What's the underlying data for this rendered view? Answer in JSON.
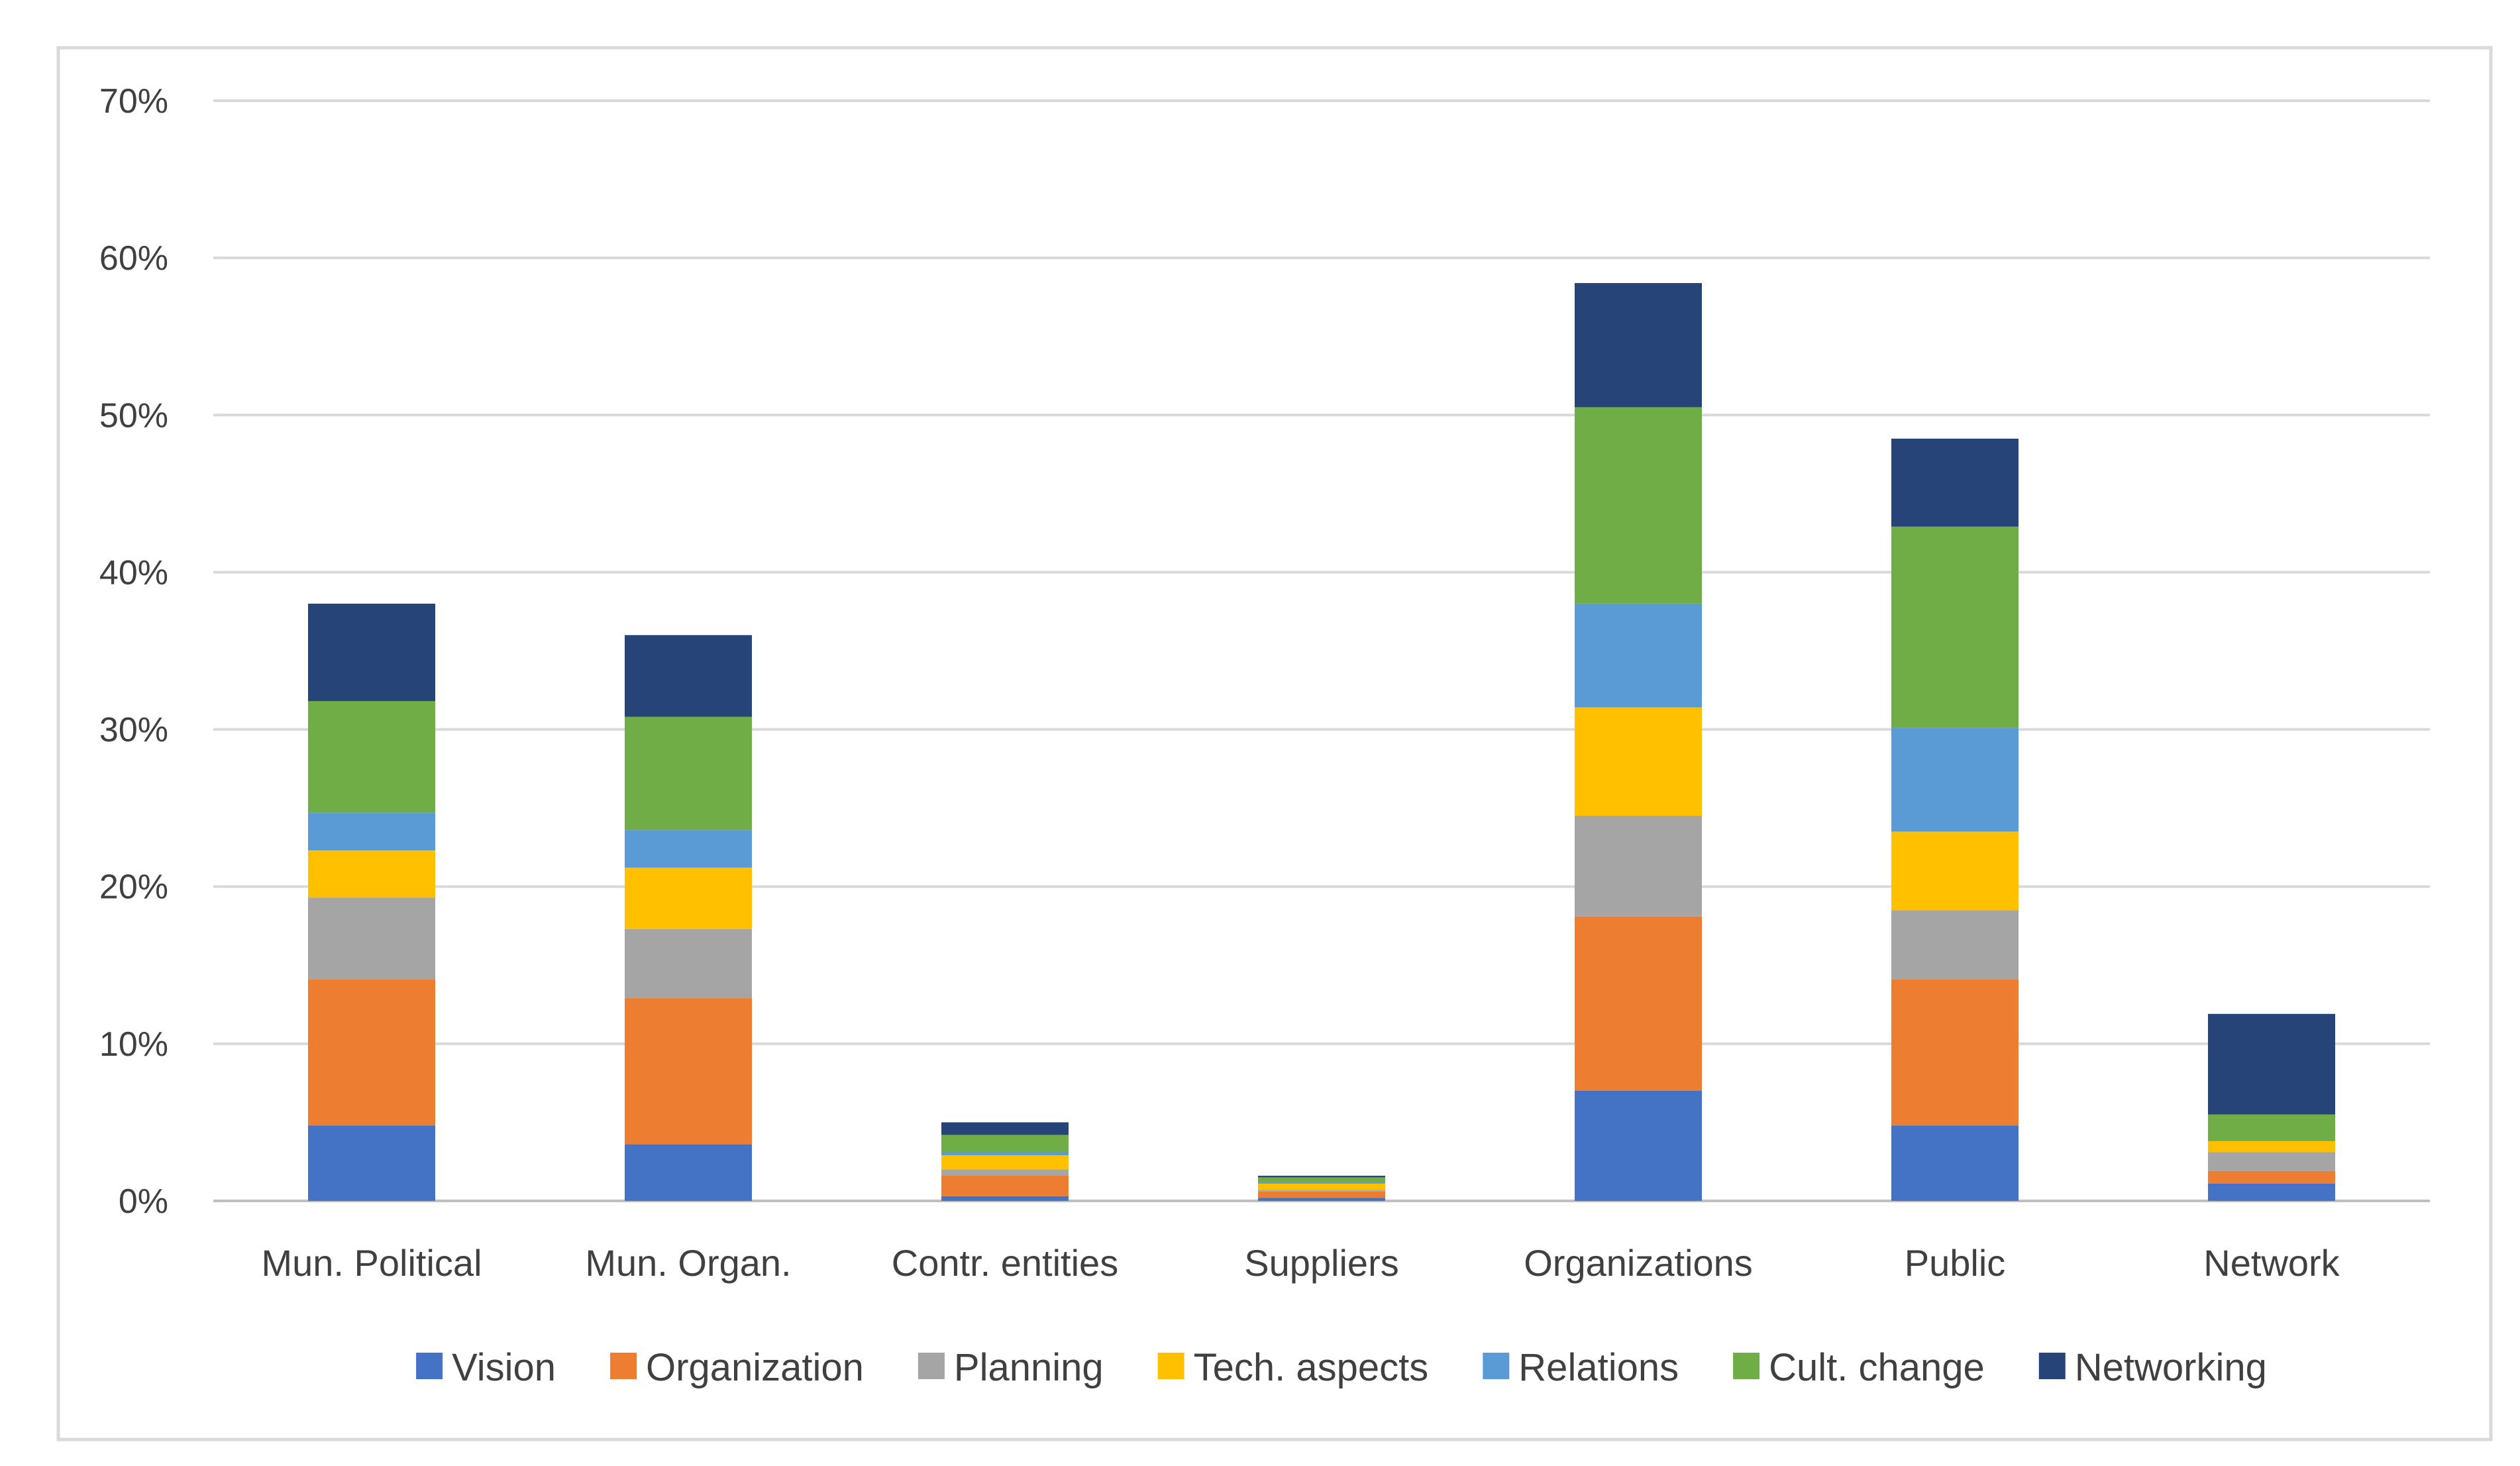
{
  "chart_data": {
    "type": "bar",
    "stacked": true,
    "title": "",
    "xlabel": "",
    "ylabel": "",
    "ylim": [
      0,
      70
    ],
    "yticks": [
      "0%",
      "10%",
      "20%",
      "30%",
      "40%",
      "50%",
      "60%",
      "70%"
    ],
    "y_tick_values": [
      0,
      10,
      20,
      30,
      40,
      50,
      60,
      70
    ],
    "grid": true,
    "legend_position": "bottom",
    "categories": [
      "Mun. Political",
      "Mun. Organ.",
      "Contr. entities",
      "Suppliers",
      "Organizations",
      "Public",
      "Network"
    ],
    "series": [
      {
        "name": "Vision",
        "color": "#4472C4",
        "values": [
          4.8,
          3.6,
          0.3,
          0.2,
          7.0,
          4.8,
          1.1
        ]
      },
      {
        "name": "Organization",
        "color": "#ED7D31",
        "values": [
          9.3,
          9.3,
          1.3,
          0.4,
          11.1,
          9.3,
          0.8
        ]
      },
      {
        "name": "Planning",
        "color": "#A5A5A5",
        "values": [
          5.2,
          4.4,
          0.4,
          0.1,
          6.4,
          4.4,
          1.2
        ]
      },
      {
        "name": "Tech. aspects",
        "color": "#FFC000",
        "values": [
          3.0,
          3.9,
          0.9,
          0.4,
          6.9,
          5.0,
          0.7
        ]
      },
      {
        "name": "Relations",
        "color": "#5B9BD5",
        "values": [
          2.4,
          2.4,
          0.2,
          0.1,
          6.6,
          6.6,
          0.0
        ]
      },
      {
        "name": "Cult. change",
        "color": "#70AD47",
        "values": [
          7.1,
          7.2,
          1.1,
          0.3,
          12.5,
          12.8,
          1.7
        ]
      },
      {
        "name": "Networking",
        "color": "#264478",
        "values": [
          6.2,
          5.2,
          0.8,
          0.1,
          7.9,
          5.6,
          6.4
        ]
      }
    ]
  }
}
